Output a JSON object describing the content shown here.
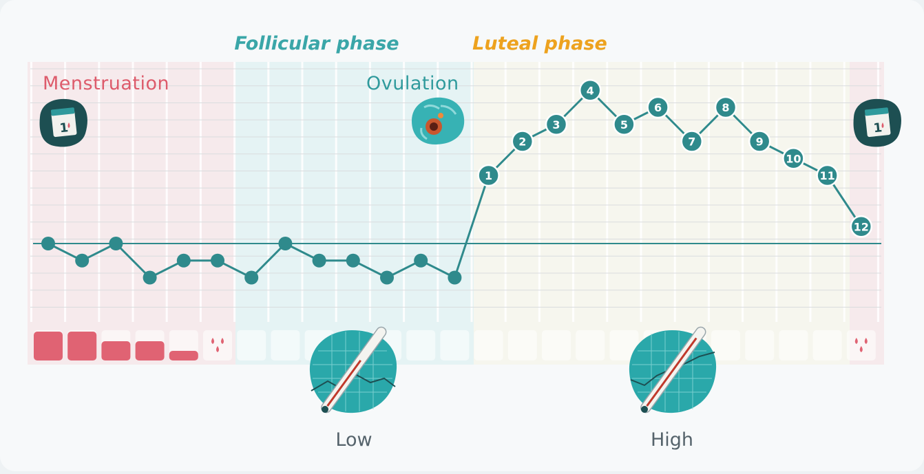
{
  "phases": {
    "follicular": {
      "label": "Follicular phase",
      "color": "#3aa6a8"
    },
    "luteal": {
      "label": "Luteal phase",
      "color": "#eda21e"
    }
  },
  "events": {
    "menstruation": {
      "label": "Menstruation",
      "color": "#dd5b6b"
    },
    "ovulation": {
      "label": "Ovulation",
      "color": "#2f9a9c",
      "icon": "ovulation-icon"
    }
  },
  "icons": {
    "calendar_start": "calendar-icon",
    "calendar_end": "calendar-icon",
    "thermometer_low": "thermometer-icon",
    "thermometer_high": "thermometer-icon"
  },
  "temperature_labels": {
    "low": "Low",
    "high": "High"
  },
  "colors": {
    "line": "#2f8a8c",
    "menstruation_bg": "#f6eaec",
    "follicular_bg": "#e6f4f5",
    "luteal_bg": "#f6f6ee",
    "flow": "#e06373"
  },
  "chart_data": {
    "type": "line",
    "title": "",
    "xlabel": "",
    "ylabel": "",
    "days": 25,
    "baseline": 0,
    "y_range": [
      -2,
      9
    ],
    "follicular_values": [
      0,
      -1,
      0,
      -2,
      -1,
      -1,
      -2,
      0,
      -1,
      -1,
      -2,
      -1,
      -2
    ],
    "luteal_labels": [
      "1",
      "2",
      "3",
      "4",
      "5",
      "6",
      "7",
      "8",
      "9",
      "10",
      "11",
      "12"
    ],
    "luteal_values": [
      4,
      6,
      7,
      9,
      7,
      8,
      6,
      8,
      6,
      5,
      4,
      1
    ],
    "flow_levels": [
      3,
      3,
      2,
      2,
      1,
      0.5,
      0,
      0,
      0,
      0,
      0,
      0,
      0,
      0,
      0,
      0,
      0,
      0,
      0,
      0,
      0,
      0,
      0,
      0,
      0.5
    ],
    "phase_days": {
      "menstruation": [
        1,
        6
      ],
      "follicular": [
        7,
        13
      ],
      "luteal": [
        14,
        24
      ],
      "next_menstruation": [
        25,
        25
      ]
    }
  }
}
